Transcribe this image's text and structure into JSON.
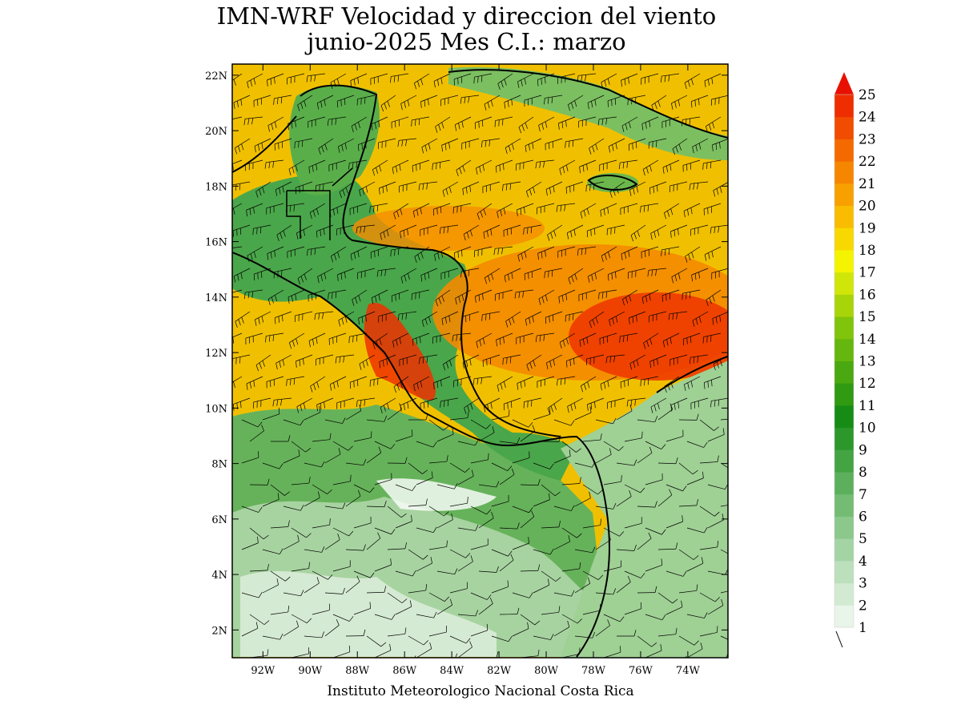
{
  "title": {
    "line1": "IMN-WRF Velocidad y direccion del viento",
    "line2": "junio-2025 Mes C.I.: marzo"
  },
  "footer": "Instituto Meteorologico Nacional Costa Rica",
  "map": {
    "lon_range": [
      -93.3,
      -72.3
    ],
    "lat_range": [
      1.0,
      22.4
    ],
    "x_ticks": [
      "92W",
      "90W",
      "88W",
      "86W",
      "84W",
      "82W",
      "80W",
      "78W",
      "76W",
      "74W"
    ],
    "x_tick_values": [
      -92,
      -90,
      -88,
      -86,
      -84,
      -82,
      -80,
      -78,
      -76,
      -74
    ],
    "y_ticks": [
      "2N",
      "4N",
      "6N",
      "8N",
      "10N",
      "12N",
      "14N",
      "16N",
      "18N",
      "20N",
      "22N"
    ],
    "y_tick_values": [
      2,
      4,
      6,
      8,
      10,
      12,
      14,
      16,
      18,
      20,
      22
    ]
  },
  "colorbar": {
    "labels": [
      "1",
      "2",
      "3",
      "4",
      "5",
      "6",
      "7",
      "8",
      "9",
      "10",
      "11",
      "12",
      "13",
      "14",
      "15",
      "16",
      "17",
      "18",
      "19",
      "20",
      "21",
      "22",
      "23",
      "24",
      "25"
    ],
    "colors": [
      "#e8f5e8",
      "#d2ead2",
      "#bcdfbc",
      "#a4d4a4",
      "#8cc88c",
      "#74bc74",
      "#5cb05c",
      "#44a444",
      "#2c982c",
      "#168c16",
      "#2f9a12",
      "#4aa810",
      "#65b60e",
      "#80c40c",
      "#a8d40a",
      "#d0e608",
      "#f4f400",
      "#f8d800",
      "#fabc00",
      "#f8a000",
      "#f68600",
      "#f46a00",
      "#f24c00",
      "#ee2e00",
      "#e81000"
    ]
  }
}
